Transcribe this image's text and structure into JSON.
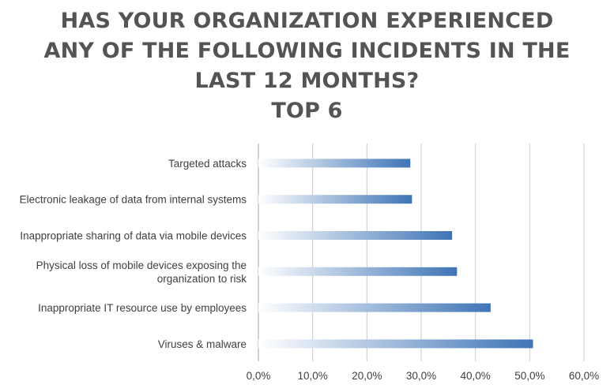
{
  "chart_data": {
    "type": "bar",
    "orientation": "horizontal",
    "title_lines": [
      "HAS YOUR ORGANIZATION EXPERIENCED",
      "ANY OF THE FOLLOWING INCIDENTS IN THE",
      "LAST 12 MONTHS?",
      "TOP 6"
    ],
    "categories": [
      "Targeted attacks",
      "Electronic leakage of data from internal systems",
      "Inappropriate sharing of data via mobile devices",
      "Physical loss of mobile devices exposing the organization to risk",
      "Inappropriate IT resource use by employees",
      "Viruses & malware"
    ],
    "category_lines": [
      [
        "Targeted attacks"
      ],
      [
        "Electronic leakage of data from internal systems"
      ],
      [
        "Inappropriate sharing of data via mobile devices"
      ],
      [
        "Physical loss of mobile devices exposing the",
        "organization to risk"
      ],
      [
        "Inappropriate IT resource use by employees"
      ],
      [
        "Viruses & malware"
      ]
    ],
    "values": [
      28.0,
      28.3,
      35.7,
      36.6,
      42.8,
      50.6
    ],
    "x_ticks": [
      0,
      10,
      20,
      30,
      40,
      50,
      60
    ],
    "x_tick_labels": [
      "0,0%",
      "10,0%",
      "20,0%",
      "30,0%",
      "40,0%",
      "50,0%",
      "60,0%"
    ],
    "xlim": [
      0,
      60
    ],
    "grid": true,
    "legend": "none",
    "colors": {
      "bar_start": "#ffffff",
      "bar_end": "#3e74b6",
      "grid": "#c8c8c8",
      "text": "#404040",
      "title": "#545454"
    }
  }
}
